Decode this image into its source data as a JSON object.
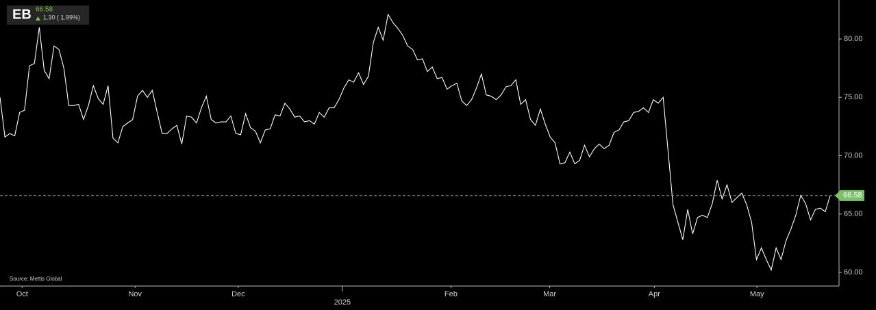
{
  "header": {
    "symbol": "EB",
    "change": "1.30 ( 1.99%)"
  },
  "chart_data": {
    "type": "line",
    "color": "#ffffff",
    "source": "Source: Mettis Global",
    "values": [
      75.0,
      71.6,
      71.9,
      71.7,
      73.7,
      73.9,
      77.7,
      77.9,
      81.0,
      77.3,
      76.6,
      79.4,
      79.1,
      77.5,
      74.3,
      74.3,
      74.4,
      73.1,
      74.3,
      76.0,
      74.9,
      74.4,
      76.0,
      71.5,
      71.1,
      72.5,
      72.8,
      73.1,
      75.1,
      75.6,
      75.0,
      75.6,
      73.7,
      71.9,
      71.9,
      72.3,
      72.6,
      71.0,
      73.4,
      73.3,
      72.8,
      74.1,
      75.1,
      73.1,
      72.8,
      72.9,
      72.9,
      73.4,
      71.9,
      71.8,
      73.6,
      72.4,
      72.1,
      71.1,
      72.2,
      72.3,
      73.5,
      73.4,
      74.5,
      74.0,
      73.3,
      73.4,
      72.9,
      73.0,
      72.7,
      73.7,
      73.3,
      74.1,
      74.1,
      74.8,
      75.8,
      76.5,
      76.3,
      77.1,
      76.1,
      76.8,
      79.7,
      81.0,
      79.9,
      82.1,
      81.4,
      80.9,
      80.3,
      79.4,
      79.1,
      78.2,
      78.3,
      77.2,
      77.6,
      76.6,
      76.7,
      75.7,
      76.0,
      76.2,
      74.7,
      74.3,
      74.8,
      75.8,
      77.0,
      75.2,
      75.1,
      74.8,
      75.2,
      75.9,
      76.0,
      76.5,
      74.4,
      74.8,
      73.1,
      72.6,
      74.0,
      72.7,
      71.6,
      71.1,
      69.3,
      69.4,
      70.3,
      69.3,
      69.6,
      70.9,
      69.9,
      70.6,
      71.0,
      70.6,
      70.9,
      72.0,
      72.2,
      72.9,
      73.0,
      73.7,
      73.8,
      74.1,
      73.7,
      74.8,
      74.5,
      75.0,
      70.4,
      65.8,
      64.3,
      62.8,
      65.4,
      63.3,
      64.7,
      64.9,
      64.7,
      65.9,
      67.9,
      66.3,
      67.5,
      66.0,
      66.4,
      66.8,
      65.8,
      64.3,
      61.1,
      62.1,
      61.1,
      60.2,
      62.1,
      61.1,
      62.7,
      63.7,
      64.9,
      66.6,
      65.9,
      64.5,
      65.4,
      65.5,
      65.2,
      66.58
    ],
    "xlim": [
      0,
      170.8
    ],
    "xticks": [
      {
        "value": 4.5,
        "label": "Oct"
      },
      {
        "value": 27.5,
        "label": "Nov"
      },
      {
        "value": 48.5,
        "label": "Dec"
      },
      {
        "value": 69.7,
        "label": "2025"
      },
      {
        "value": 91.8,
        "label": "Feb"
      },
      {
        "value": 111.9,
        "label": "Mar"
      },
      {
        "value": 133.2,
        "label": "Apr"
      },
      {
        "value": 154.1,
        "label": "May"
      }
    ],
    "ylim": [
      58.83,
      83.34
    ],
    "yticks": [
      {
        "value": 60,
        "label": "60.00"
      },
      {
        "value": 65,
        "label": "65.00"
      },
      {
        "value": 70,
        "label": "70.00"
      },
      {
        "value": 75,
        "label": "75.00"
      },
      {
        "value": 80,
        "label": "80.00"
      }
    ],
    "last_price_line": true,
    "last_price_color": "#7cc06a"
  }
}
